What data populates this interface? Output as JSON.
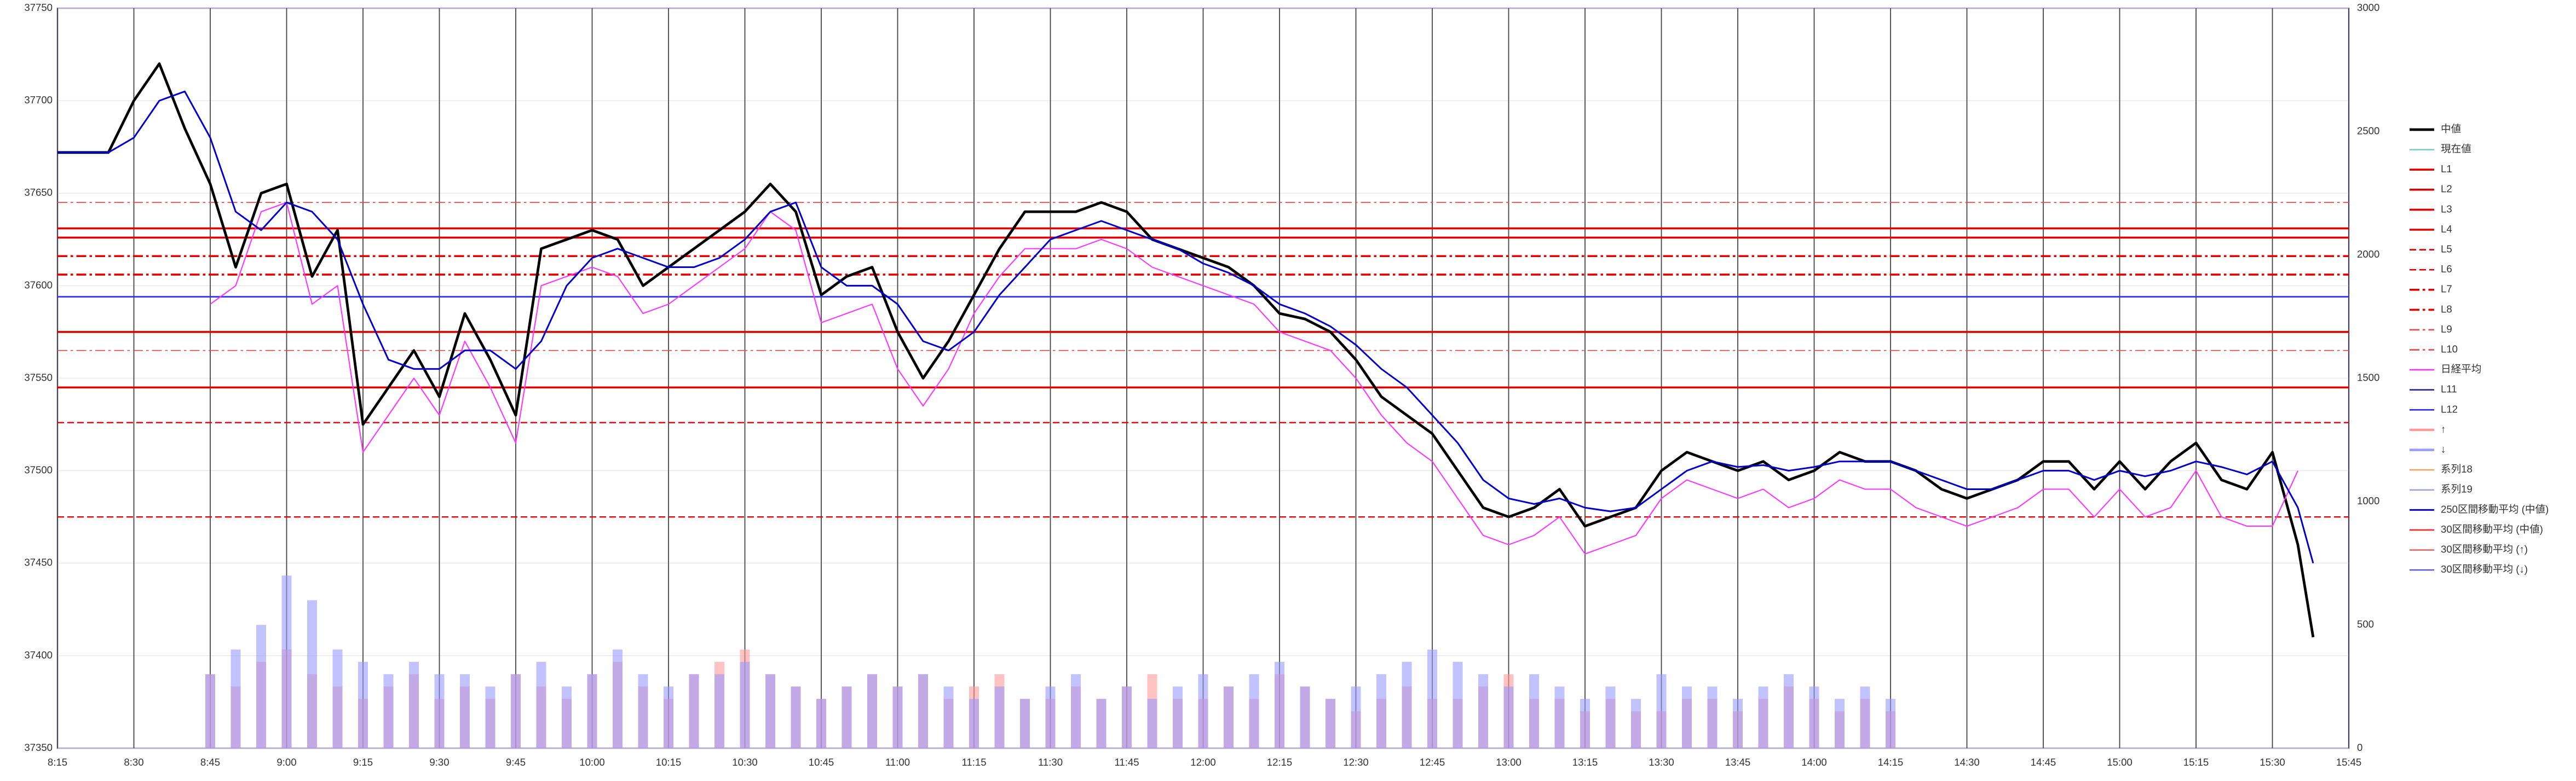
{
  "chart_data": {
    "type": "line",
    "xlim": [
      495,
      945
    ],
    "xticks": [
      {
        "value": 495,
        "label": "8:15"
      },
      {
        "value": 510,
        "label": "8:30"
      },
      {
        "value": 525,
        "label": "8:45"
      },
      {
        "value": 540,
        "label": "9:00"
      },
      {
        "value": 555,
        "label": "9:15"
      },
      {
        "value": 570,
        "label": "9:30"
      },
      {
        "value": 585,
        "label": "9:45"
      },
      {
        "value": 600,
        "label": "10:00"
      },
      {
        "value": 615,
        "label": "10:15"
      },
      {
        "value": 630,
        "label": "10:30"
      },
      {
        "value": 645,
        "label": "10:45"
      },
      {
        "value": 660,
        "label": "11:00"
      },
      {
        "value": 675,
        "label": "11:15"
      },
      {
        "value": 690,
        "label": "11:30"
      },
      {
        "value": 705,
        "label": "11:45"
      },
      {
        "value": 720,
        "label": "12:00"
      },
      {
        "value": 735,
        "label": "12:15"
      },
      {
        "value": 750,
        "label": "12:30"
      },
      {
        "value": 765,
        "label": "12:45"
      },
      {
        "value": 780,
        "label": "13:00"
      },
      {
        "value": 795,
        "label": "13:15"
      },
      {
        "value": 810,
        "label": "13:30"
      },
      {
        "value": 825,
        "label": "13:45"
      },
      {
        "value": 840,
        "label": "14:00"
      },
      {
        "value": 855,
        "label": "14:15"
      },
      {
        "value": 870,
        "label": "14:30"
      },
      {
        "value": 885,
        "label": "14:45"
      },
      {
        "value": 900,
        "label": "15:00"
      },
      {
        "value": 915,
        "label": "15:15"
      },
      {
        "value": 930,
        "label": "15:30"
      },
      {
        "value": 945,
        "label": "15:45"
      }
    ],
    "ylim": [
      37350,
      37750
    ],
    "yticks": [
      37350,
      37400,
      37450,
      37500,
      37550,
      37600,
      37650,
      37700,
      37750
    ],
    "y2lim": [
      0,
      3000
    ],
    "y2ticks": [
      0,
      500,
      1000,
      1500,
      2000,
      2500,
      3000
    ],
    "grid": true,
    "legend": "right",
    "x": [
      495,
      500,
      505,
      510,
      515,
      520,
      525,
      530,
      535,
      540,
      545,
      550,
      555,
      560,
      565,
      570,
      575,
      580,
      585,
      590,
      595,
      600,
      605,
      610,
      615,
      620,
      625,
      630,
      635,
      640,
      645,
      650,
      655,
      660,
      665,
      670,
      675,
      680,
      685,
      690,
      695,
      700,
      705,
      710,
      715,
      720,
      725,
      730,
      735,
      740,
      745,
      750,
      755,
      760,
      765,
      770,
      775,
      780,
      785,
      790,
      795,
      800,
      805,
      810,
      815,
      820,
      825,
      830,
      835,
      840,
      845,
      850,
      855,
      860,
      865,
      870,
      875,
      880,
      885,
      890,
      895,
      900,
      905,
      910,
      915,
      920,
      925,
      930,
      935,
      938
    ],
    "series": [
      {
        "name": "中値",
        "color": "#000000",
        "width": 1.6,
        "values": [
          37672,
          37672,
          37672,
          37700,
          37720,
          37685,
          37655,
          37610,
          37650,
          37655,
          37605,
          37630,
          37525,
          37545,
          37565,
          37540,
          37585,
          37560,
          37530,
          37620,
          37625,
          37630,
          37625,
          37600,
          37610,
          37620,
          37630,
          37640,
          37655,
          37640,
          37595,
          37605,
          37610,
          37575,
          37550,
          37570,
          37595,
          37620,
          37640,
          37640,
          37640,
          37645,
          37640,
          37625,
          37620,
          37615,
          37610,
          37600,
          37585,
          37582,
          37575,
          37560,
          37540,
          37530,
          37520,
          37500,
          37480,
          37475,
          37480,
          37490,
          37470,
          37475,
          37480,
          37500,
          37510,
          37505,
          37500,
          37505,
          37495,
          37500,
          37510,
          37505,
          37505,
          37500,
          37490,
          37485,
          37490,
          37495,
          37505,
          37505,
          37490,
          37505,
          37490,
          37505,
          37515,
          37495,
          37490,
          37510,
          37460,
          37410
        ]
      },
      {
        "name": "現在値",
        "color": "#7fd1c0",
        "width": 0.8
      },
      {
        "name": "L1",
        "color": "#e00000",
        "width": 1.2,
        "value": 37631
      },
      {
        "name": "L2",
        "color": "#e00000",
        "width": 1.2,
        "value": 37626
      },
      {
        "name": "L3",
        "color": "#e00000",
        "width": 1.2,
        "value": 37575
      },
      {
        "name": "L4",
        "color": "#e00000",
        "width": 1.2,
        "value": 37545
      },
      {
        "name": "L5",
        "color": "#e00000",
        "width": 0.8,
        "dash": "dash",
        "value": 37475
      },
      {
        "name": "L6",
        "color": "#e00000",
        "width": 0.8,
        "dash": "dash",
        "value": 37526
      },
      {
        "name": "L7",
        "color": "#e00000",
        "width": 1.2,
        "dash": "dashdot",
        "value": 37616
      },
      {
        "name": "L8",
        "color": "#e00000",
        "width": 1.2,
        "dash": "dashdot",
        "value": 37606
      },
      {
        "name": "L9",
        "color": "#e05050",
        "width": 0.6,
        "dash": "dashdot",
        "value": 37645
      },
      {
        "name": "L10",
        "color": "#e05050",
        "width": 0.6,
        "dash": "dashdot",
        "value": 37565
      },
      {
        "name": "日経平均",
        "color": "#ff33ff",
        "width": 0.7,
        "values": [
          null,
          null,
          null,
          null,
          null,
          null,
          37590,
          37600,
          37640,
          37645,
          37590,
          37600,
          37510,
          37530,
          37550,
          37530,
          37570,
          37545,
          37515,
          37600,
          37605,
          37610,
          37605,
          37585,
          37590,
          37600,
          37610,
          37620,
          37640,
          37630,
          37580,
          37585,
          37590,
          37555,
          37535,
          37555,
          37585,
          37605,
          37620,
          37620,
          37620,
          37625,
          37620,
          37610,
          37605,
          37600,
          37595,
          37590,
          37575,
          37570,
          37565,
          37550,
          37530,
          37515,
          37505,
          37485,
          37465,
          37460,
          37465,
          37475,
          37455,
          37460,
          37465,
          37485,
          37495,
          37490,
          37485,
          37490,
          37480,
          37485,
          37495,
          37490,
          37490,
          37480,
          37475,
          37470,
          37475,
          37480,
          37490,
          37490,
          37475,
          37490,
          37475,
          37480,
          37500,
          37475,
          37470,
          37470,
          37500,
          null
        ]
      },
      {
        "name": "L11",
        "color": "#1f1f8f",
        "width": 0.9,
        "value": 37594
      },
      {
        "name": "L12",
        "color": "#3030ff",
        "width": 0.9,
        "value": 37594
      },
      {
        "name": "↑",
        "type": "bar",
        "axis": "y2",
        "color": "#ff9a9a",
        "x": [
          525,
          530,
          535,
          540,
          545,
          550,
          555,
          560,
          565,
          570,
          575,
          580,
          585,
          590,
          595,
          600,
          605,
          610,
          615,
          620,
          625,
          630,
          635,
          640,
          645,
          650,
          655,
          660,
          665,
          670,
          675,
          680,
          685,
          690,
          695,
          700,
          705,
          710,
          715,
          720,
          725,
          730,
          735,
          740,
          745,
          750,
          755,
          760,
          765,
          770,
          775,
          780,
          785,
          790,
          795,
          800,
          805,
          810,
          815,
          820,
          825,
          830,
          835,
          840,
          845,
          850,
          855
        ],
        "values": [
          300,
          250,
          350,
          400,
          300,
          250,
          200,
          250,
          300,
          200,
          250,
          200,
          300,
          250,
          200,
          300,
          350,
          250,
          200,
          300,
          350,
          400,
          300,
          250,
          200,
          250,
          300,
          250,
          300,
          200,
          250,
          300,
          200,
          200,
          250,
          200,
          250,
          300,
          200,
          200,
          250,
          200,
          300,
          250,
          200,
          150,
          200,
          250,
          200,
          200,
          250,
          300,
          200,
          200,
          150,
          200,
          150,
          150,
          200,
          200,
          150,
          200,
          250,
          200,
          150,
          200,
          150
        ]
      },
      {
        "name": "↓",
        "type": "bar",
        "axis": "y2",
        "color": "#9a9aff",
        "x": [
          525,
          530,
          535,
          540,
          545,
          550,
          555,
          560,
          565,
          570,
          575,
          580,
          585,
          590,
          595,
          600,
          605,
          610,
          615,
          620,
          625,
          630,
          635,
          640,
          645,
          650,
          655,
          660,
          665,
          670,
          675,
          680,
          685,
          690,
          695,
          700,
          705,
          710,
          715,
          720,
          725,
          730,
          735,
          740,
          745,
          750,
          755,
          760,
          765,
          770,
          775,
          780,
          785,
          790,
          795,
          800,
          805,
          810,
          815,
          820,
          825,
          830,
          835,
          840,
          845,
          850,
          855
        ],
        "values": [
          300,
          400,
          500,
          700,
          600,
          400,
          350,
          300,
          350,
          300,
          300,
          250,
          300,
          350,
          250,
          300,
          400,
          300,
          250,
          300,
          300,
          350,
          300,
          250,
          200,
          250,
          300,
          250,
          300,
          250,
          200,
          250,
          200,
          250,
          300,
          200,
          250,
          200,
          250,
          300,
          250,
          300,
          350,
          250,
          200,
          250,
          300,
          350,
          400,
          350,
          300,
          250,
          300,
          250,
          200,
          250,
          200,
          300,
          250,
          250,
          200,
          250,
          300,
          250,
          200,
          250,
          200
        ]
      },
      {
        "name": "系列18",
        "color": "#f4a460",
        "width": 0.8
      },
      {
        "name": "系列19",
        "color": "#a0a0d0",
        "width": 0.8
      },
      {
        "name": "250区間移動平均 (中値)",
        "color": "#0000cc",
        "width": 1,
        "values": [
          37672,
          37672,
          37672,
          37680,
          37700,
          37705,
          37680,
          37640,
          37630,
          37645,
          37640,
          37625,
          37590,
          37560,
          37555,
          37555,
          37565,
          37565,
          37555,
          37570,
          37600,
          37615,
          37620,
          37615,
          37610,
          37610,
          37615,
          37625,
          37640,
          37645,
          37610,
          37600,
          37600,
          37590,
          37570,
          37565,
          37575,
          37595,
          37610,
          37625,
          37630,
          37635,
          37630,
          37625,
          37620,
          37612,
          37607,
          37600,
          37590,
          37585,
          37578,
          37568,
          37555,
          37545,
          37530,
          37515,
          37495,
          37485,
          37482,
          37485,
          37480,
          37478,
          37480,
          37490,
          37500,
          37505,
          37502,
          37503,
          37500,
          37502,
          37505,
          37505,
          37505,
          37500,
          37495,
          37490,
          37490,
          37495,
          37500,
          37500,
          37495,
          37500,
          37497,
          37500,
          37505,
          37502,
          37498,
          37505,
          37480,
          37450
        ]
      },
      {
        "name": "30区間移動平均 (中値)",
        "color": "#e03030",
        "width": 0.8
      },
      {
        "name": "30区間移動平均 (↑)",
        "color": "#e07070",
        "width": 0.8
      },
      {
        "name": "30区間移動平均 (↓)",
        "color": "#6060e0",
        "width": 0.8
      }
    ]
  }
}
